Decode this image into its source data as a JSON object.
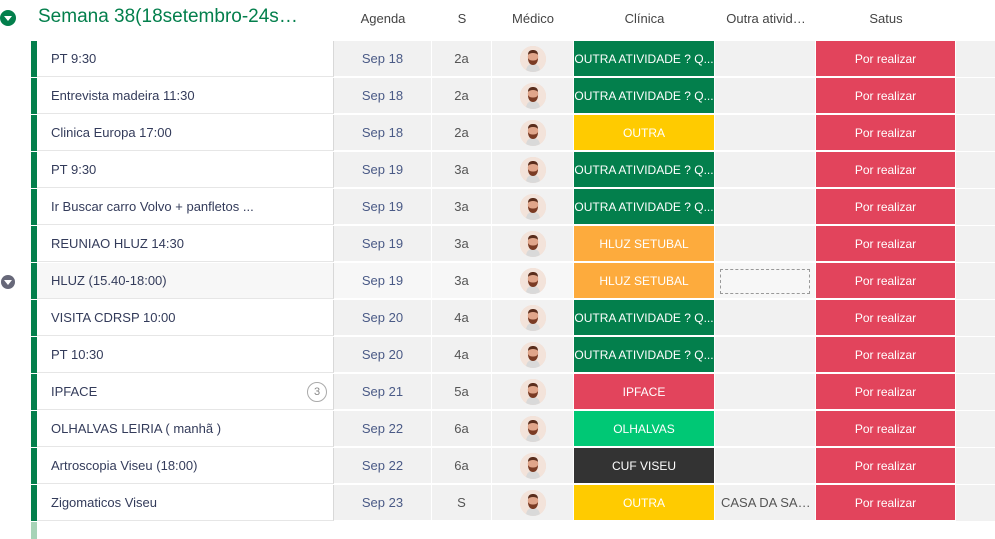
{
  "group": {
    "title": "Semana 38(18setembro-24set…",
    "accent_color": "#037f4c"
  },
  "columns": {
    "agenda": "Agenda",
    "s": "S",
    "medico": "Médico",
    "clinica": "Clínica",
    "outra": "Outra ativid…",
    "status": "Satus"
  },
  "rows": [
    {
      "name": "PT 9:30",
      "agenda": "Sep 18",
      "s": "2a",
      "clinica": "OUTRA ATIVIDADE ? Q...",
      "clinica_color": "#037f4c",
      "outra": "",
      "status": "Por realizar"
    },
    {
      "name": "Entrevista madeira 11:30",
      "agenda": "Sep 18",
      "s": "2a",
      "clinica": "OUTRA ATIVIDADE ? Q...",
      "clinica_color": "#037f4c",
      "outra": "",
      "status": "Por realizar"
    },
    {
      "name": "Clinica Europa 17:00",
      "agenda": "Sep 18",
      "s": "2a",
      "clinica": "OUTRA",
      "clinica_color": "#ffcb00",
      "outra": "",
      "status": "Por realizar"
    },
    {
      "name": "PT 9:30",
      "agenda": "Sep 19",
      "s": "3a",
      "clinica": "OUTRA ATIVIDADE ? Q...",
      "clinica_color": "#037f4c",
      "outra": "",
      "status": "Por realizar"
    },
    {
      "name": "Ir Buscar carro Volvo + panfletos ...",
      "agenda": "Sep 19",
      "s": "3a",
      "clinica": "OUTRA ATIVIDADE ? Q...",
      "clinica_color": "#037f4c",
      "outra": "",
      "status": "Por realizar"
    },
    {
      "name": "REUNIAO HLUZ 14:30",
      "agenda": "Sep 19",
      "s": "3a",
      "clinica": "HLUZ SETUBAL",
      "clinica_color": "#fdab3d",
      "outra": "",
      "status": "Por realizar"
    },
    {
      "name": "HLUZ (15.40-18:00)",
      "agenda": "Sep 19",
      "s": "3a",
      "clinica": "HLUZ SETUBAL",
      "clinica_color": "#fdab3d",
      "outra": "",
      "status": "Por realizar"
    },
    {
      "name": "VISITA CDRSP 10:00",
      "agenda": "Sep 20",
      "s": "4a",
      "clinica": "OUTRA ATIVIDADE ? Q...",
      "clinica_color": "#037f4c",
      "outra": "",
      "status": "Por realizar"
    },
    {
      "name": "PT 10:30",
      "agenda": "Sep 20",
      "s": "4a",
      "clinica": "OUTRA ATIVIDADE ? Q...",
      "clinica_color": "#037f4c",
      "outra": "",
      "status": "Por realizar"
    },
    {
      "name": "IPFACE",
      "agenda": "Sep 21",
      "s": "5a",
      "clinica": "IPFACE",
      "clinica_color": "#e2445c",
      "outra": "",
      "status": "Por realizar",
      "updates": "3"
    },
    {
      "name": "OLHALVAS LEIRIA ( manhã )",
      "agenda": "Sep 22",
      "s": "6a",
      "clinica": "OLHALVAS",
      "clinica_color": "#00c875",
      "outra": "",
      "status": "Por realizar"
    },
    {
      "name": "Artroscopia Viseu (18:00)",
      "agenda": "Sep 22",
      "s": "6a",
      "clinica": "CUF VISEU",
      "clinica_color": "#333333",
      "outra": "",
      "status": "Por realizar"
    },
    {
      "name": "Zigomaticos Viseu",
      "agenda": "Sep 23",
      "s": "S",
      "clinica": "OUTRA",
      "clinica_color": "#ffcb00",
      "outra": "CASA DA SAU...",
      "status": "Por realizar"
    }
  ],
  "status_color": "#e2445c"
}
